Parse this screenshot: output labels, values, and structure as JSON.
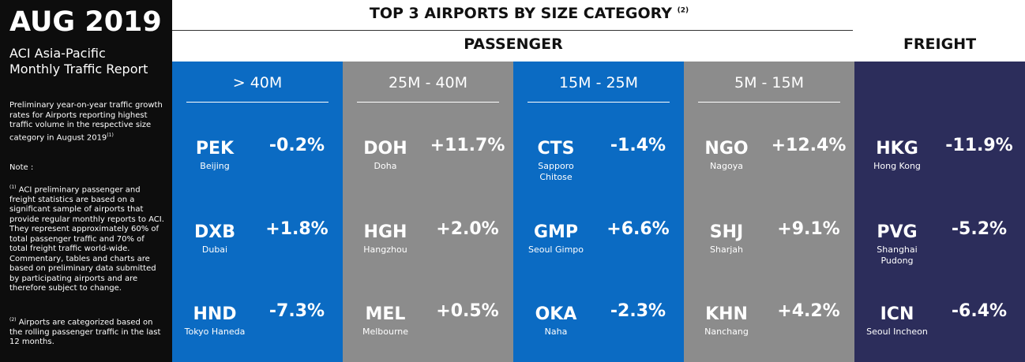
{
  "sidebar": {
    "title": "AUG 2019",
    "subtitle": [
      "ACI Asia-Pacific",
      "Monthly Traffic Report"
    ],
    "description": "Preliminary year-on-year traffic growth rates for Airports reporting highest traffic volume in the respective size category in August 2019",
    "description_mark": "(1)",
    "note_label": "Note :",
    "notes": [
      {
        "mark": "(1)",
        "text": "ACI preliminary passenger and freight statistics are based on a significant sample of airports that provide regular monthly reports to ACI. They represent approximately 60% of total passenger traffic and 70% of total freight traffic world-wide. Commentary, tables and charts are based on preliminary data submitted by participating airports and are therefore subject to change."
      },
      {
        "mark": "(2)",
        "text": "Airports are categorized based on the rolling passenger traffic in the last 12 months."
      }
    ]
  },
  "header": {
    "title": "TOP 3 AIRPORTS BY SIZE CATEGORY",
    "title_mark": "(2)",
    "passenger": "PASSENGER",
    "freight": "FREIGHT"
  },
  "columns": [
    {
      "label": "> 40M",
      "airports": [
        {
          "code": "PEK",
          "city": "Beijing",
          "growth": "-0.2%"
        },
        {
          "code": "DXB",
          "city": "Dubai",
          "growth": "+1.8%"
        },
        {
          "code": "HND",
          "city": "Tokyo Haneda",
          "growth": "-7.3%"
        }
      ]
    },
    {
      "label": "25M - 40M",
      "airports": [
        {
          "code": "DOH",
          "city": "Doha",
          "growth": "+11.7%"
        },
        {
          "code": "HGH",
          "city": "Hangzhou",
          "growth": "+2.0%"
        },
        {
          "code": "MEL",
          "city": "Melbourne",
          "growth": "+0.5%"
        }
      ]
    },
    {
      "label": "15M - 25M",
      "airports": [
        {
          "code": "CTS",
          "city": "Sapporo Chitose",
          "growth": "-1.4%"
        },
        {
          "code": "GMP",
          "city": "Seoul Gimpo",
          "growth": "+6.6%"
        },
        {
          "code": "OKA",
          "city": "Naha",
          "growth": "-2.3%"
        }
      ]
    },
    {
      "label": "5M - 15M",
      "airports": [
        {
          "code": "NGO",
          "city": "Nagoya",
          "growth": "+12.4%"
        },
        {
          "code": "SHJ",
          "city": "Sharjah",
          "growth": "+9.1%"
        },
        {
          "code": "KHN",
          "city": "Nanchang",
          "growth": "+4.2%"
        }
      ]
    },
    {
      "label": null,
      "airports": [
        {
          "code": "HKG",
          "city": "Hong Kong",
          "growth": "-11.9%"
        },
        {
          "code": "PVG",
          "city": "Shanghai Pudong",
          "growth": "-5.2%"
        },
        {
          "code": "ICN",
          "city": "Seoul Incheon",
          "growth": "-6.4%"
        }
      ]
    }
  ]
}
